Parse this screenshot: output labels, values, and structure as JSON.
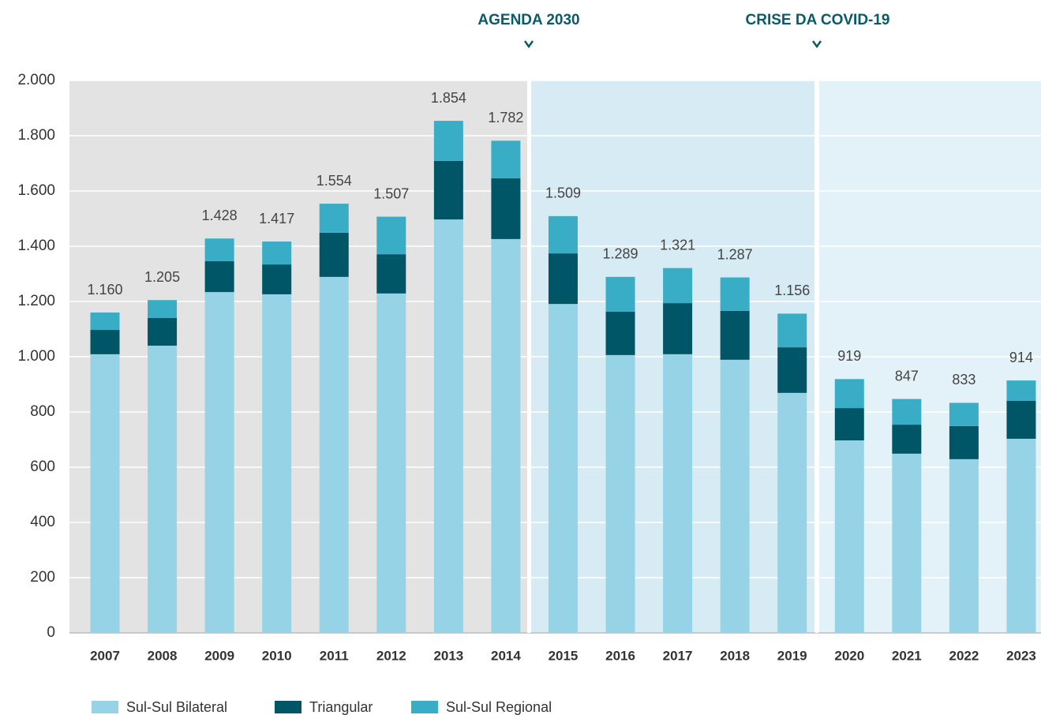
{
  "chart_data": {
    "type": "stacked_bar",
    "categories": [
      "2007",
      "2008",
      "2009",
      "2010",
      "2011",
      "2012",
      "2013",
      "2014",
      "2015",
      "2016",
      "2017",
      "2018",
      "2019",
      "2020",
      "2021",
      "2022",
      "2023"
    ],
    "series": [
      {
        "name": "Sul-Sul Bilateral",
        "color": "#96d3e6",
        "values": [
          1009,
          1040,
          1234,
          1226,
          1289,
          1229,
          1497,
          1426,
          1191,
          1006,
          1009,
          989,
          869,
          697,
          649,
          629,
          703
        ]
      },
      {
        "name": "Triangular",
        "color": "#005566",
        "values": [
          88,
          100,
          112,
          108,
          160,
          142,
          212,
          220,
          183,
          157,
          185,
          177,
          165,
          117,
          105,
          120,
          137
        ]
      },
      {
        "name": "Sul-Sul Regional",
        "color": "#3aadc6",
        "values": [
          63,
          65,
          82,
          83,
          105,
          136,
          145,
          136,
          135,
          126,
          127,
          121,
          122,
          105,
          93,
          84,
          74
        ]
      }
    ],
    "totals": {
      "values": [
        1160,
        1205,
        1428,
        1417,
        1554,
        1507,
        1854,
        1782,
        1509,
        1289,
        1321,
        1287,
        1156,
        919,
        847,
        833,
        914
      ],
      "value_labels": [
        "1.160",
        "1.205",
        "1.428",
        "1.417",
        "1.554",
        "1.507",
        "1.854",
        "1.782",
        "1.509",
        "1.289",
        "1.321",
        "1.287",
        "1.156",
        "919",
        "847",
        "833",
        "914"
      ]
    },
    "annotations": [
      {
        "text": "AGENDA 2030"
      },
      {
        "text": "CRISE DA COVID-19"
      }
    ],
    "ylim": [
      0,
      2000
    ],
    "yticks": [
      0,
      200,
      400,
      600,
      800,
      {
        "value": 1000,
        "label": "1.000"
      },
      {
        "value": 1200,
        "label": "1.200"
      },
      {
        "value": 1400,
        "label": "1.400"
      },
      {
        "value": 1600,
        "label": "1.600"
      },
      {
        "value": 1800,
        "label": "1.800"
      },
      {
        "value": 2000,
        "label": "2.000"
      }
    ],
    "grid": true
  }
}
